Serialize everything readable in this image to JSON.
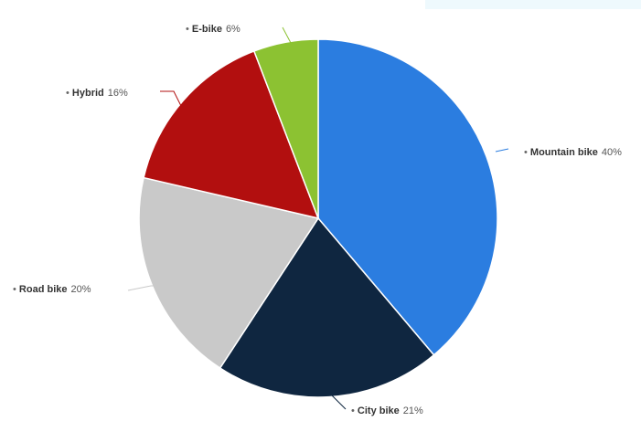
{
  "chart_data": {
    "type": "pie",
    "title": "",
    "slices": [
      {
        "label": "Mountain bike",
        "value": 40,
        "value_label": "40%",
        "color": "#2b7de0"
      },
      {
        "label": "City bike",
        "value": 21,
        "value_label": "21%",
        "color": "#0f2640"
      },
      {
        "label": "Road bike",
        "value": 20,
        "value_label": "20%",
        "color": "#c9c9c9"
      },
      {
        "label": "Hybrid",
        "value": 16,
        "value_label": "16%",
        "color": "#b20f0f"
      },
      {
        "label": "E-bike",
        "value": 6,
        "value_label": "6%",
        "color": "#8cc232"
      }
    ],
    "legend": "none",
    "labels": "outside with leader lines",
    "start": "12 o'clock, clockwise"
  }
}
